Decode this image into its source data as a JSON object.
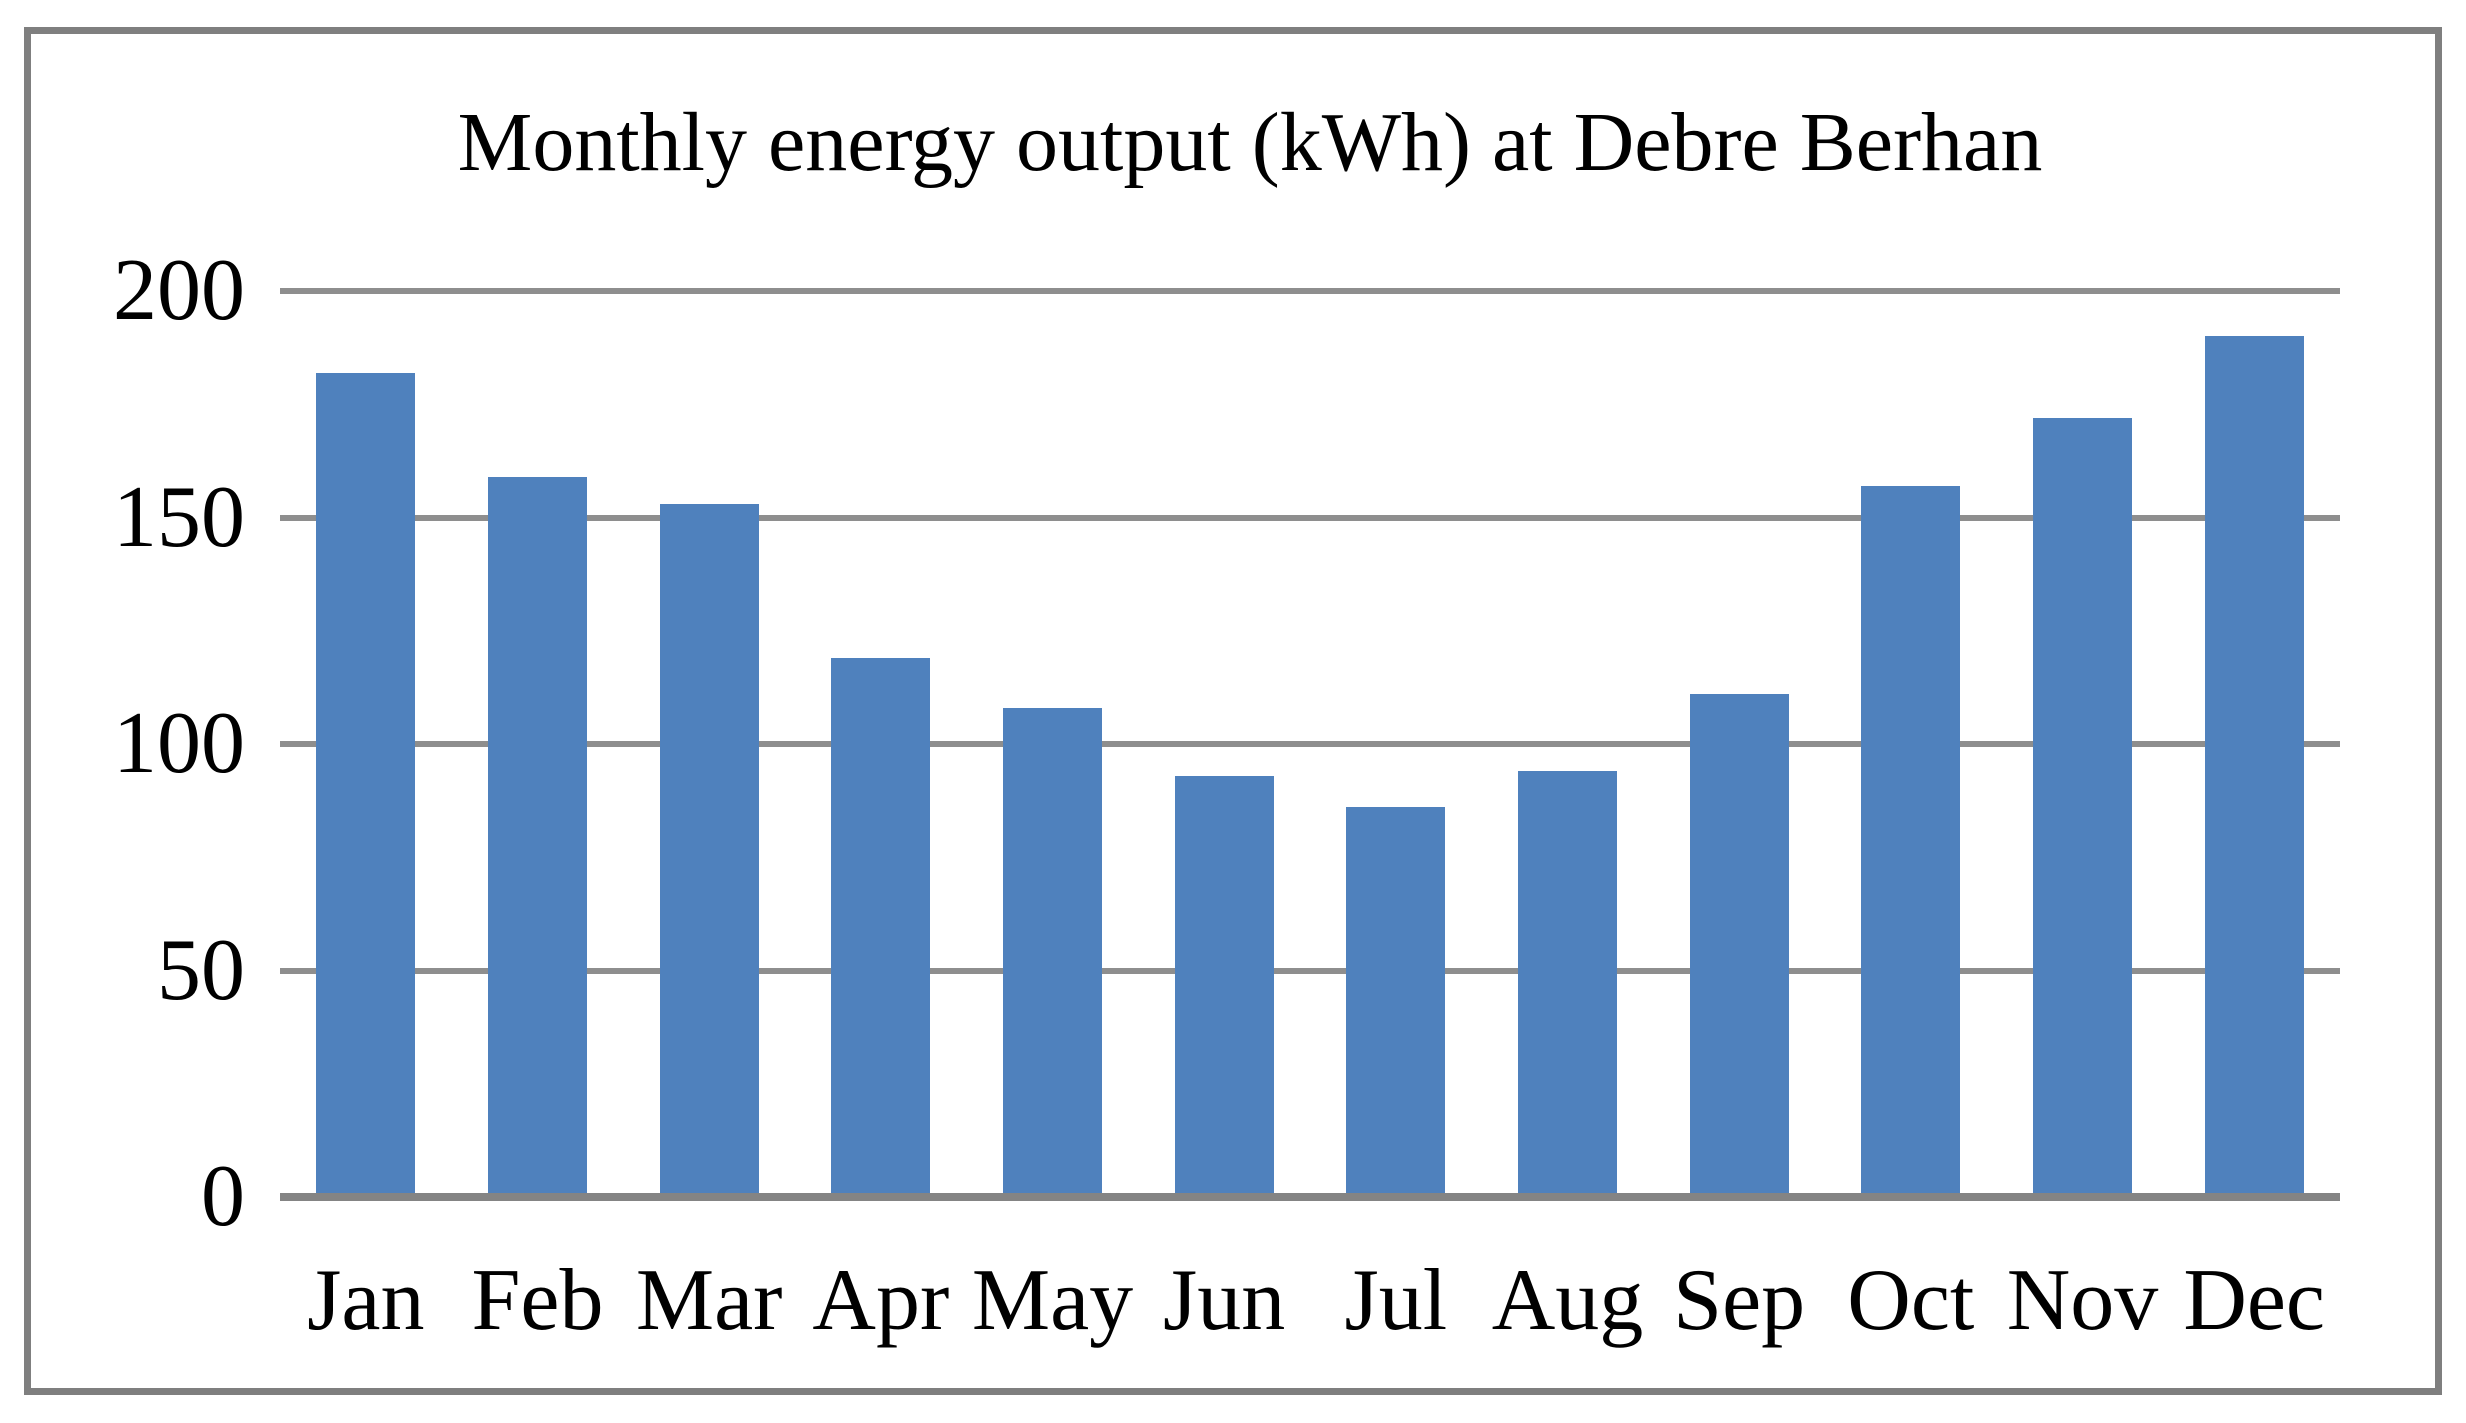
{
  "chart_data": {
    "type": "bar",
    "title": "Monthly energy output (kWh) at Debre Berhan",
    "categories": [
      "Jan",
      "Feb",
      "Mar",
      "Apr",
      "May",
      "Jun",
      "Jul",
      "Aug",
      "Sep",
      "Oct",
      "Nov",
      "Dec"
    ],
    "values": [
      182,
      159,
      153,
      119,
      108,
      93,
      86,
      94,
      111,
      157,
      172,
      190
    ],
    "xlabel": "",
    "ylabel": "",
    "ylim": [
      0,
      200
    ],
    "yticks": [
      0,
      50,
      100,
      150,
      200
    ],
    "grid": true,
    "legend": false,
    "bar_color": "#4F81BD",
    "gridline_color": "#8E8E8E",
    "axis_line_color": "#848484",
    "frame_border_color": "#7F7F7F",
    "text_color": "#000000",
    "background_color": "#FFFFFF"
  }
}
